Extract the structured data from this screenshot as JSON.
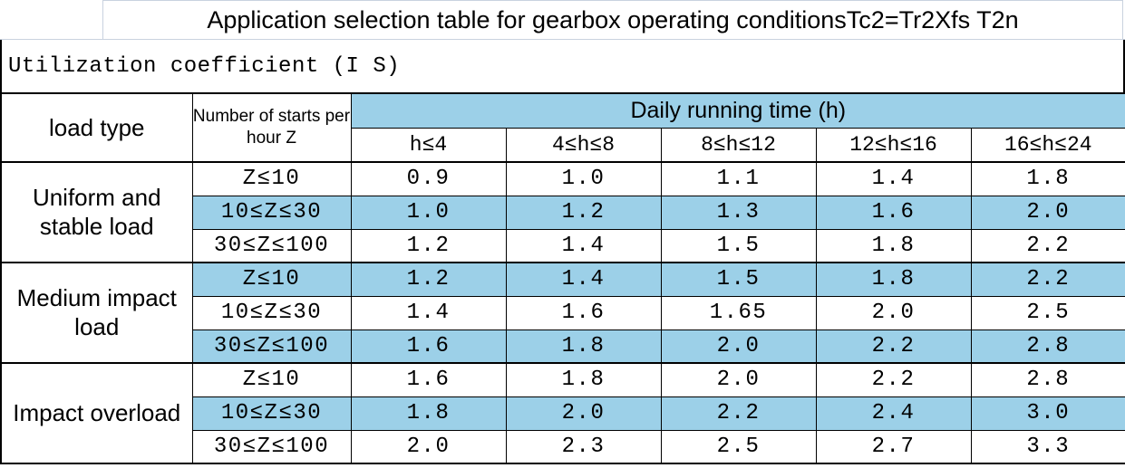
{
  "title": "Application selection table for gearbox operating conditionsTc2=Tr2Xfs T2n",
  "subtitle": "Utilization coefficient (I S)",
  "colors": {
    "highlight_blue": "#9CD0E8",
    "title_border": "#C9D2DF",
    "table_border": "#000000"
  },
  "table": {
    "col1_header": "load type",
    "col2_header": "Number of starts per hour Z",
    "daily_header": "Daily running time (h)",
    "time_columns": [
      "h≤4",
      "4≤h≤8",
      "8≤h≤12",
      "12≤h≤16",
      "16≤h≤24"
    ],
    "groups": [
      {
        "load_type": "Uniform and stable load",
        "rows": [
          {
            "z": "Z≤10",
            "values": [
              "0.9",
              "1.0",
              "1.1",
              "1.4",
              "1.8"
            ],
            "highlight": false
          },
          {
            "z": "10≤Z≤30",
            "values": [
              "1.0",
              "1.2",
              "1.3",
              "1.6",
              "2.0"
            ],
            "highlight": true
          },
          {
            "z": "30≤Z≤100",
            "values": [
              "1.2",
              "1.4",
              "1.5",
              "1.8",
              "2.2"
            ],
            "highlight": false
          }
        ]
      },
      {
        "load_type": "Medium impact load",
        "rows": [
          {
            "z": "Z≤10",
            "values": [
              "1.2",
              "1.4",
              "1.5",
              "1.8",
              "2.2"
            ],
            "highlight": true
          },
          {
            "z": "10≤Z≤30",
            "values": [
              "1.4",
              "1.6",
              "1.65",
              "2.0",
              "2.5"
            ],
            "highlight": false
          },
          {
            "z": "30≤Z≤100",
            "values": [
              "1.6",
              "1.8",
              "2.0",
              "2.2",
              "2.8"
            ],
            "highlight": true
          }
        ]
      },
      {
        "load_type": "Impact overload",
        "rows": [
          {
            "z": "Z≤10",
            "values": [
              "1.6",
              "1.8",
              "2.0",
              "2.2",
              "2.8"
            ],
            "highlight": false
          },
          {
            "z": "10≤Z≤30",
            "values": [
              "1.8",
              "2.0",
              "2.2",
              "2.4",
              "3.0"
            ],
            "highlight": true
          },
          {
            "z": "30≤Z≤100",
            "values": [
              "2.0",
              "2.3",
              "2.5",
              "2.7",
              "3.3"
            ],
            "highlight": false
          }
        ]
      }
    ]
  }
}
